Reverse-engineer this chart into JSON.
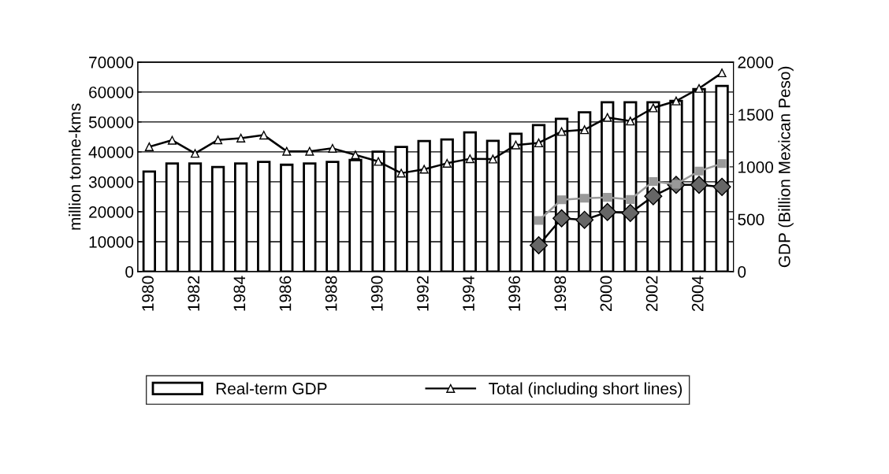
{
  "chart_data": {
    "type": "line",
    "categories": [
      "1980",
      null,
      "1982",
      null,
      "1984",
      null,
      "1986",
      null,
      "1988",
      null,
      "1990",
      null,
      "1992",
      null,
      "1994",
      null,
      "1996",
      null,
      "1998",
      null,
      "2000",
      null,
      "2002",
      null,
      "2004",
      null
    ],
    "series": [
      {
        "name": "Real-term GDP",
        "type": "bar",
        "axis": "y2",
        "color": "#ffffff",
        "values": [
          955,
          1032,
          1032,
          998,
          1032,
          1047,
          1020,
          1032,
          1047,
          1065,
          1145,
          1190,
          1246,
          1261,
          1329,
          1248,
          1316,
          1398,
          1459,
          1521,
          1617,
          1617,
          1617,
          1630,
          1742,
          1772
        ]
      },
      {
        "color": "#000000",
        "marker": "diamond",
        "values": [
          null,
          null,
          null,
          null,
          null,
          null,
          null,
          null,
          null,
          null,
          null,
          null,
          null,
          null,
          null,
          null,
          null,
          8800,
          17800,
          17300,
          19900,
          19600,
          25200,
          29000,
          29000,
          28300
        ]
      },
      {
        "color": "#999999",
        "marker": "square",
        "values": [
          null,
          null,
          null,
          null,
          null,
          null,
          null,
          null,
          null,
          null,
          null,
          null,
          null,
          null,
          null,
          null,
          null,
          17100,
          24000,
          24500,
          24800,
          24100,
          30100,
          29200,
          33600,
          36100
        ]
      },
      {
        "name": "Total (including short lines)",
        "color": "#000000",
        "marker": "triangle",
        "values": [
          41700,
          43900,
          39500,
          44000,
          44600,
          45600,
          40200,
          40200,
          41200,
          39000,
          36800,
          32900,
          34200,
          36200,
          37700,
          37600,
          42300,
          43000,
          46800,
          47400,
          51500,
          50300,
          54700,
          57000,
          61200,
          66400
        ]
      }
    ],
    "ylabel": "million tonne-kms",
    "y2label": "GDP (Billion Mexican Peso)",
    "ylim": [
      0,
      70000
    ],
    "yticks": [
      0,
      10000,
      20000,
      30000,
      40000,
      50000,
      60000,
      70000
    ],
    "y2lim": [
      0,
      2000
    ],
    "y2ticks": [
      0,
      500,
      1000,
      1500,
      2000
    ],
    "grid": "y",
    "legend": "bottom",
    "line_style": "solid"
  }
}
